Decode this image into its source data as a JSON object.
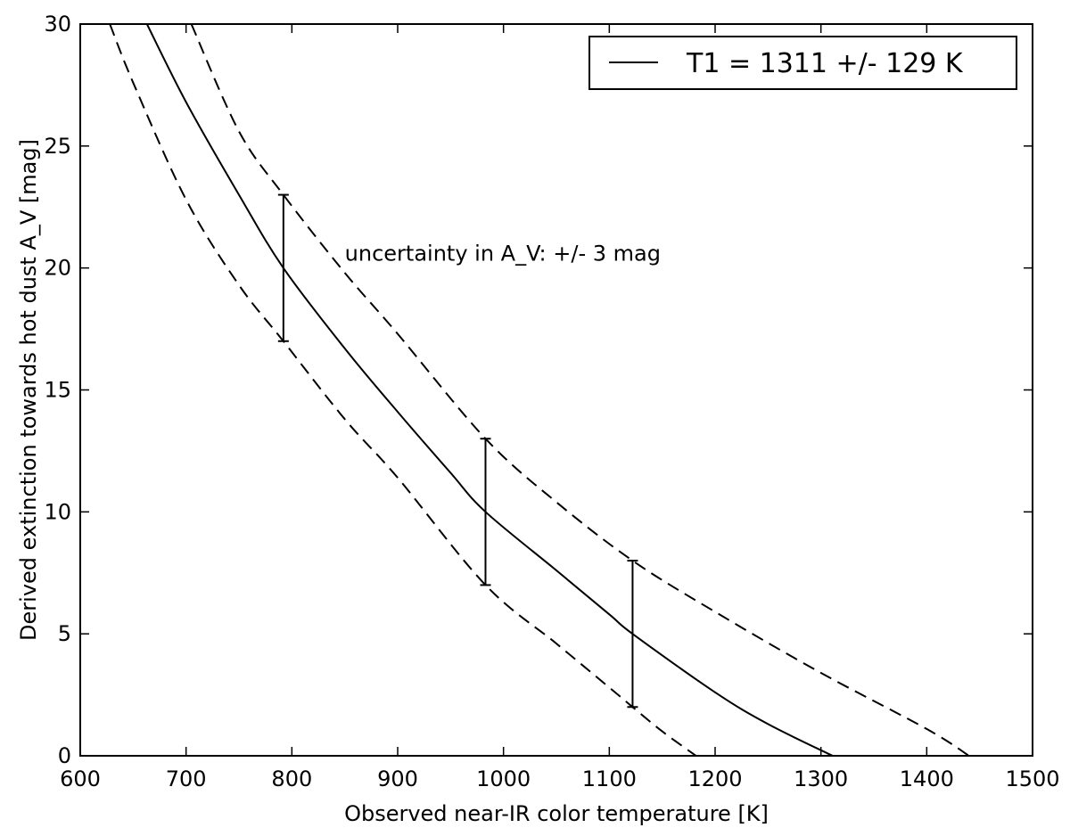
{
  "chart_data": {
    "type": "line",
    "xlabel": "Observed near-IR color temperature [K]",
    "ylabel": "Derived extinction towards hot dust A_V [mag]",
    "xlim": [
      600,
      1500
    ],
    "ylim": [
      0,
      30
    ],
    "x_ticks": [
      600,
      700,
      800,
      900,
      1000,
      1100,
      1200,
      1300,
      1400,
      1500
    ],
    "y_ticks": [
      0,
      5,
      10,
      15,
      20,
      25,
      30
    ],
    "x_tick_labels": [
      "600",
      "700",
      "800",
      "900",
      "1000",
      "1100",
      "1200",
      "1300",
      "1400",
      "1500"
    ],
    "y_tick_labels": [
      "0",
      "5",
      "10",
      "15",
      "20",
      "25",
      "30"
    ],
    "grid": false,
    "legend": {
      "position": "top-right",
      "entries": [
        "T1 = 1311 +/- 129 K"
      ]
    },
    "series": [
      {
        "name": "T1 = 1311 +/- 129 K",
        "style": "solid",
        "color": "#000000",
        "x": [
          663,
          700,
          750,
          792,
          850,
          900,
          950,
          983,
          1050,
          1100,
          1122,
          1200,
          1250,
          1311
        ],
        "y": [
          30,
          26.8,
          23.0,
          20.0,
          16.7,
          14.1,
          11.6,
          10.0,
          7.6,
          5.8,
          5.0,
          2.6,
          1.3,
          0
        ]
      },
      {
        "style": "dashed",
        "color": "#000000",
        "x": [
          628,
          650,
          700,
          750,
          792,
          850,
          900,
          983,
          1050,
          1100,
          1122,
          1150,
          1182
        ],
        "y": [
          30,
          27.6,
          22.8,
          19.3,
          17.0,
          13.8,
          11.4,
          7.0,
          4.6,
          2.8,
          2.0,
          1.0,
          0
        ]
      },
      {
        "style": "dashed",
        "color": "#000000",
        "x": [
          705,
          750,
          792,
          850,
          900,
          983,
          1050,
          1122,
          1200,
          1300,
          1400,
          1440
        ],
        "y": [
          30,
          25.6,
          23.0,
          19.8,
          17.3,
          13.0,
          10.4,
          8.0,
          5.9,
          3.4,
          1.1,
          0
        ]
      }
    ],
    "error_bars": [
      {
        "x": 792,
        "y": 20,
        "yerr": 3
      },
      {
        "x": 983,
        "y": 10,
        "yerr": 3
      },
      {
        "x": 1122,
        "y": 5,
        "yerr": 3
      }
    ],
    "annotations": [
      {
        "text": "uncertainty in A_V: +/- 3 mag",
        "x": 850,
        "y": 20.3
      }
    ]
  }
}
